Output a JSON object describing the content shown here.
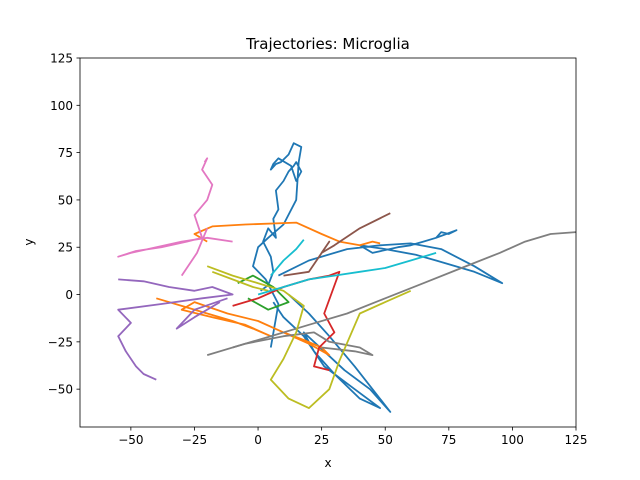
{
  "chart_data": {
    "type": "line",
    "title": "Trajectories: Microglia",
    "xlabel": "x",
    "ylabel": "y",
    "xlim": [
      -70,
      125
    ],
    "ylim": [
      -70,
      125
    ],
    "xticks": [
      -50,
      -25,
      0,
      25,
      50,
      75,
      100,
      125
    ],
    "yticks": [
      -50,
      -25,
      0,
      25,
      50,
      75,
      100,
      125
    ],
    "xtick_labels": [
      "−50",
      "−25",
      "0",
      "25",
      "50",
      "75",
      "100",
      "125"
    ],
    "ytick_labels": [
      "−50",
      "−25",
      "0",
      "25",
      "50",
      "75",
      "100",
      "125"
    ],
    "grid": false,
    "legend": "none",
    "series": [
      {
        "color": "#1f77b4",
        "x": [
          1,
          4,
          6,
          5,
          2,
          4,
          7,
          6,
          8,
          7,
          10,
          12,
          14,
          15,
          17,
          15,
          13,
          8,
          6,
          5,
          7,
          9,
          12,
          14,
          17,
          16,
          15,
          10,
          4,
          0,
          -2,
          3,
          8,
          5
        ],
        "y": [
          2,
          5,
          12,
          20,
          28,
          35,
          30,
          40,
          45,
          55,
          60,
          65,
          68,
          70,
          65,
          60,
          68,
          72,
          69,
          66,
          69,
          70,
          74,
          80,
          78,
          70,
          50,
          37,
          30,
          25,
          15,
          8,
          -5,
          -28
        ]
      },
      {
        "color": "#1f77b4",
        "x": [
          8,
          20,
          35,
          48,
          60,
          72,
          85,
          96,
          85,
          70,
          62,
          50,
          40,
          45,
          55,
          60,
          65,
          70,
          72,
          75,
          78,
          74,
          70
        ],
        "y": [
          10,
          18,
          24,
          26,
          27,
          24,
          15,
          6,
          12,
          18,
          21,
          24,
          26,
          22,
          25,
          26,
          28,
          30,
          33,
          32,
          34,
          32,
          30
        ]
      },
      {
        "color": "#1f77b4",
        "x": [
          12,
          20,
          28,
          38,
          52,
          44,
          34,
          26,
          18,
          22,
          30,
          40,
          48,
          38,
          26,
          18,
          10,
          6
        ],
        "y": [
          0,
          -10,
          -22,
          -38,
          -62,
          -50,
          -40,
          -30,
          -20,
          -30,
          -42,
          -55,
          -60,
          -50,
          -38,
          -22,
          -12,
          -4
        ]
      },
      {
        "color": "#ff7f0e",
        "x": [
          -20,
          -25,
          -18,
          -5,
          15,
          25,
          32,
          40,
          45,
          48
        ],
        "y": [
          28,
          32,
          36,
          37,
          38,
          32,
          28,
          26,
          28,
          27
        ]
      },
      {
        "color": "#ff7f0e",
        "x": [
          -40,
          -30,
          -20,
          -10,
          -2,
          5,
          -5,
          -18,
          -30,
          -25,
          -12,
          0,
          10,
          18,
          25,
          28,
          20,
          10
        ],
        "y": [
          -2,
          -6,
          -10,
          -14,
          -18,
          -22,
          -16,
          -12,
          -8,
          -4,
          -10,
          -14,
          -20,
          -24,
          -28,
          -32,
          -26,
          -20
        ]
      },
      {
        "color": "#2ca02c",
        "x": [
          -8,
          -2,
          6,
          12,
          4,
          -4
        ],
        "y": [
          6,
          10,
          4,
          -4,
          -8,
          -2
        ]
      },
      {
        "color": "#d62728",
        "x": [
          -10,
          0,
          10,
          20,
          28,
          32,
          26,
          30,
          24,
          22,
          28
        ],
        "y": [
          -6,
          -2,
          4,
          8,
          10,
          12,
          -10,
          -20,
          -28,
          -38,
          -40
        ]
      },
      {
        "color": "#9467bd",
        "x": [
          -55,
          -45,
          -35,
          -25,
          -18,
          -10,
          -22,
          -38,
          -55,
          -50,
          -55,
          -52,
          -48,
          -45,
          -40
        ],
        "y": [
          8,
          7,
          4,
          2,
          4,
          0,
          -2,
          -5,
          -8,
          -15,
          -22,
          -30,
          -38,
          -42,
          -45
        ]
      },
      {
        "color": "#9467bd",
        "x": [
          -15,
          -25,
          -32,
          -25,
          -12
        ],
        "y": [
          -4,
          -12,
          -18,
          -8,
          -2
        ]
      },
      {
        "color": "#8c564b",
        "x": [
          10,
          20,
          28,
          25,
          30,
          40,
          52
        ],
        "y": [
          10,
          12,
          28,
          22,
          26,
          35,
          43
        ]
      },
      {
        "color": "#e377c2",
        "x": [
          -10,
          -20,
          -30,
          -40,
          -50,
          -55,
          -48,
          -38,
          -28,
          -22,
          -25,
          -20,
          -18,
          -22,
          -20,
          -21
        ],
        "y": [
          28,
          30,
          28,
          25,
          22,
          20,
          23,
          25,
          28,
          30,
          42,
          50,
          58,
          66,
          72,
          70
        ]
      },
      {
        "color": "#e377c2",
        "x": [
          -30,
          -24,
          -20
        ],
        "y": [
          10,
          22,
          35
        ]
      },
      {
        "color": "#7f7f7f",
        "x": [
          -10,
          5,
          20,
          35,
          50,
          65,
          80,
          95,
          105,
          115,
          125
        ],
        "y": [
          -28,
          -22,
          -16,
          -10,
          -2,
          6,
          14,
          22,
          28,
          32,
          33
        ]
      },
      {
        "color": "#7f7f7f",
        "x": [
          -20,
          -5,
          10,
          22,
          28,
          40,
          45,
          38,
          25
        ],
        "y": [
          -32,
          -26,
          -22,
          -20,
          -25,
          -28,
          -32,
          -30,
          -28
        ]
      },
      {
        "color": "#bcbd22",
        "x": [
          -20,
          -10,
          0,
          10,
          18,
          15,
          10,
          5,
          12,
          20,
          28,
          32,
          40,
          50,
          60
        ],
        "y": [
          15,
          10,
          6,
          2,
          -6,
          -20,
          -34,
          -45,
          -55,
          -60,
          -50,
          -35,
          -10,
          -4,
          2
        ]
      },
      {
        "color": "#bcbd22",
        "x": [
          -18,
          -10,
          -2,
          4
        ],
        "y": [
          12,
          8,
          4,
          2
        ]
      },
      {
        "color": "#17becf",
        "x": [
          0,
          10,
          20,
          30,
          40,
          50,
          60,
          70
        ],
        "y": [
          0,
          4,
          8,
          10,
          12,
          14,
          18,
          22
        ]
      },
      {
        "color": "#17becf",
        "x": [
          5,
          10,
          15,
          18
        ],
        "y": [
          10,
          18,
          24,
          29
        ]
      }
    ]
  }
}
